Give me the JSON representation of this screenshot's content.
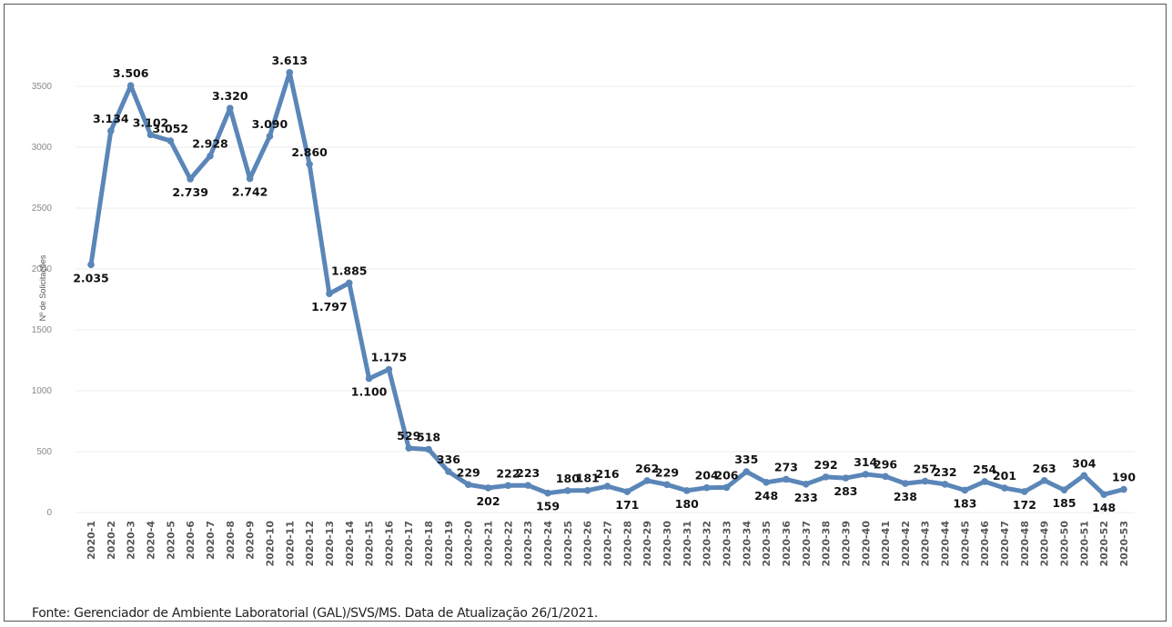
{
  "chart_data": {
    "type": "line",
    "title": "",
    "xlabel": "",
    "ylabel": "Nº de Solicitações",
    "ylim": [
      0,
      3700
    ],
    "yticks": [
      "0",
      "500",
      "1000",
      "1500",
      "2000",
      "2500",
      "3000",
      "3500"
    ],
    "grid": true,
    "line_color": "#5a86b8",
    "categories": [
      "2020-1",
      "2020-2",
      "2020-3",
      "2020-4",
      "2020-5",
      "2020-6",
      "2020-7",
      "2020-8",
      "2020-9",
      "2020-10",
      "2020-11",
      "2020-12",
      "2020-13",
      "2020-14",
      "2020-15",
      "2020-16",
      "2020-17",
      "2020-18",
      "2020-19",
      "2020-20",
      "2020-21",
      "2020-22",
      "2020-23",
      "2020-24",
      "2020-25",
      "2020-26",
      "2020-27",
      "2020-28",
      "2020-29",
      "2020-30",
      "2020-31",
      "2020-32",
      "2020-33",
      "2020-34",
      "2020-35",
      "2020-36",
      "2020-37",
      "2020-38",
      "2020-39",
      "2020-40",
      "2020-41",
      "2020-42",
      "2020-43",
      "2020-44",
      "2020-45",
      "2020-46",
      "2020-47",
      "2020-48",
      "2020-49",
      "2020-50",
      "2020-51",
      "2020-52",
      "2020-53"
    ],
    "values": [
      2035,
      3134,
      3506,
      3102,
      3052,
      2739,
      2928,
      3320,
      2742,
      3090,
      3613,
      2860,
      1797,
      1885,
      1100,
      1175,
      529,
      518,
      336,
      229,
      202,
      222,
      223,
      159,
      180,
      181,
      216,
      171,
      262,
      229,
      180,
      204,
      206,
      335,
      248,
      273,
      233,
      292,
      283,
      314,
      296,
      238,
      257,
      232,
      183,
      254,
      201,
      172,
      263,
      185,
      304,
      148,
      190
    ],
    "data_labels": [
      "2.035",
      "3.134",
      "3.506",
      "3.102",
      "3.052",
      "2.739",
      "2.928",
      "3.320",
      "2.742",
      "3.090",
      "3.613",
      "2.860",
      "1.797",
      "1.885",
      "1.100",
      "1.175",
      "529",
      "518",
      "336",
      "229",
      "202",
      "222",
      "223",
      "159",
      "180",
      "181",
      "216",
      "171",
      "262",
      "229",
      "180",
      "204",
      "206",
      "335",
      "248",
      "273",
      "233",
      "292",
      "283",
      "314",
      "296",
      "238",
      "257",
      "232",
      "183",
      "254",
      "201",
      "172",
      "263",
      "185",
      "304",
      "148",
      "190"
    ]
  },
  "source_note": "Fonte: Gerenciador de Ambiente Laboratorial (GAL)/SVS/MS. Data de Atualização 26/1/2021."
}
